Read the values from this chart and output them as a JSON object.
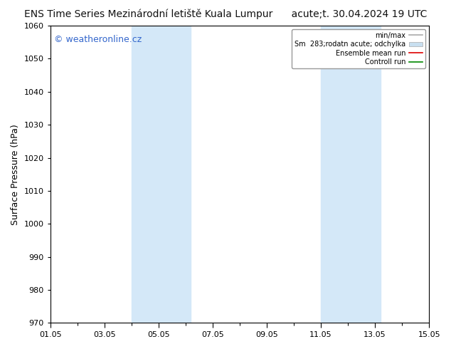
{
  "title_left": "ENS Time Series Mezinárodní letiště Kuala Lumpur",
  "title_right": "acute;t. 30.04.2024 19 UTC",
  "ylabel": "Surface Pressure (hPa)",
  "ylim": [
    970,
    1060
  ],
  "yticks": [
    970,
    980,
    990,
    1000,
    1010,
    1020,
    1030,
    1040,
    1050,
    1060
  ],
  "xtick_labels": [
    "01.05",
    "03.05",
    "05.05",
    "07.05",
    "09.05",
    "11.05",
    "13.05",
    "15.05"
  ],
  "xtick_positions": [
    0,
    2,
    4,
    6,
    8,
    10,
    12,
    14
  ],
  "xlim": [
    0,
    14
  ],
  "shade_bands": [
    {
      "xmin": 3.0,
      "xmax": 5.2
    },
    {
      "xmin": 10.0,
      "xmax": 12.2
    }
  ],
  "shade_color": "#d4e8f8",
  "watermark": "© weatheronline.cz",
  "legend_labels": [
    "min/max",
    "Sm  283;rodatn acute; odchylka",
    "Ensemble mean run",
    "Controll run"
  ],
  "legend_handle_colors": [
    "#aaaaaa",
    "#c8dff0",
    "#dd0000",
    "#008800"
  ],
  "bg_color": "#ffffff",
  "plot_bg_color": "#ffffff",
  "title_fontsize": 10,
  "title_color": "#111111",
  "tick_fontsize": 8,
  "ylabel_fontsize": 9,
  "watermark_color": "#3366cc",
  "watermark_fontsize": 9
}
